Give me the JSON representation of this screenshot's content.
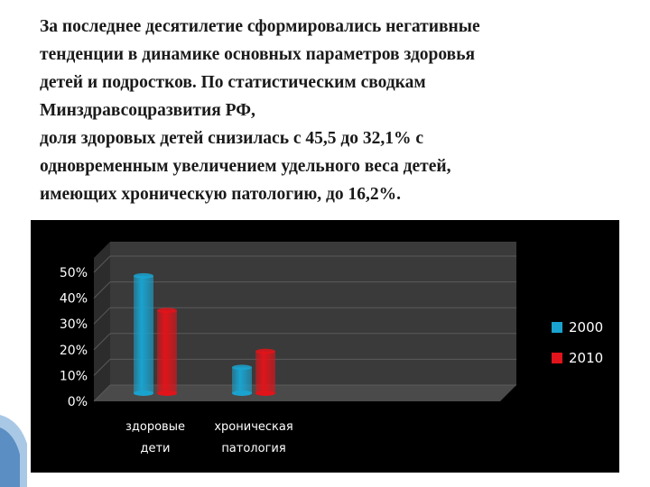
{
  "text": {
    "lines": [
      "За последнее десятилетие сформировались негативные",
      "тенденции в динамике основных параметров здоровья",
      "детей и подростков.  По статистическим сводкам",
      "Минздравсоцразвития РФ,",
      "доля здоровых детей снизилась с 45,5 до 32,1% с",
      "одновременным увеличением удельного веса детей,",
      "имеющих хроническую патологию, до 16,2%."
    ]
  },
  "chart_data": {
    "type": "bar",
    "categories": [
      [
        "здоровые",
        "дети"
      ],
      [
        "хроническая",
        "патология"
      ]
    ],
    "series": [
      {
        "name": "2000",
        "values": [
          45.5,
          10.0
        ],
        "color": "#1aa3cf"
      },
      {
        "name": "2010",
        "values": [
          32.1,
          16.2
        ],
        "color": "#e0141a"
      }
    ],
    "yticks": [
      "0%",
      "10%",
      "20%",
      "30%",
      "40%",
      "50%"
    ],
    "ylim": [
      0,
      50
    ],
    "legend_position": "right",
    "grid": true,
    "background": "#000000",
    "wall_color": "#3a3a3a"
  }
}
